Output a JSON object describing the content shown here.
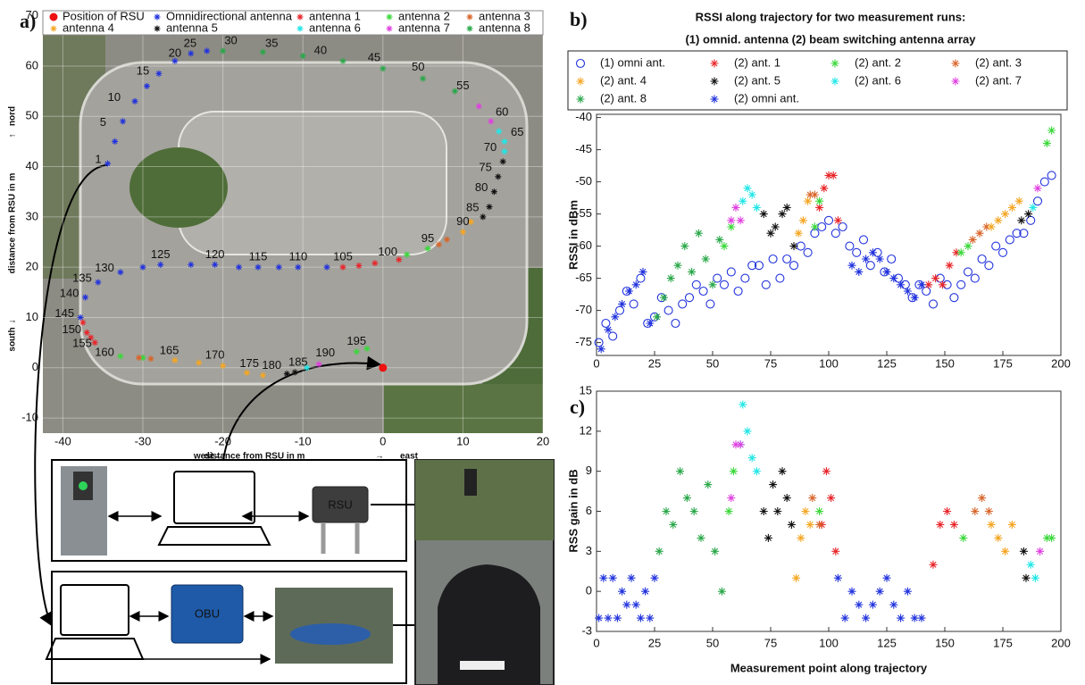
{
  "chart_data": [
    {
      "type": "scatter",
      "panel_label": "a)",
      "xlabel": "distance from RSU in m",
      "x_low_label": "west",
      "x_low_arrow": "←",
      "x_high_arrow": "→",
      "x_high_label": "east",
      "ylabel": "distance from RSU in m",
      "y_low_label": "south",
      "y_low_arrow": "↓",
      "y_high_arrow": "↑",
      "y_high_label": "nord",
      "xlim": [
        -42.5,
        20
      ],
      "ylim": [
        -13,
        71
      ],
      "xticks": [
        -40,
        -30,
        -20,
        -10,
        0,
        10,
        20
      ],
      "yticks": [
        -10,
        0,
        10,
        20,
        30,
        40,
        50,
        60,
        70
      ],
      "grid": true,
      "legend_columns": 5,
      "series": [
        {
          "name": "Position of RSU",
          "color": "#ee1111",
          "marker": "dot",
          "x": [
            0
          ],
          "y": [
            0
          ]
        },
        {
          "name": "Omnidirectional antenna",
          "color": "#2233dd",
          "marker": "*",
          "x": [
            -34.4,
            -33.5,
            -32.5,
            -31,
            -29.5,
            -28,
            -26,
            -24,
            -22,
            -7,
            -10.6,
            -13,
            -15.6,
            -18,
            -21,
            -24,
            -27.8,
            -30,
            -32.8,
            -35.6,
            -37.2,
            -37.8
          ],
          "y": [
            40.6,
            45,
            49,
            53,
            56,
            58.5,
            61,
            62.5,
            63,
            20,
            20,
            20,
            20,
            20,
            20.5,
            20.5,
            20.5,
            20,
            19,
            17,
            14,
            10
          ]
        },
        {
          "name": "antenna 1",
          "color": "#e8262b",
          "marker": "*",
          "x": [
            2,
            -1,
            -3,
            -5,
            -37.5,
            -37,
            -36.5,
            -36
          ],
          "y": [
            21.5,
            20.8,
            20.3,
            20,
            9,
            7,
            6,
            5
          ]
        },
        {
          "name": "antenna 2",
          "color": "#3ad83a",
          "marker": "*",
          "x": [
            5.6,
            3,
            -32.8,
            -30,
            -3.3,
            -2
          ],
          "y": [
            23.7,
            22.5,
            2.3,
            2.0,
            3.2,
            3.8
          ]
        },
        {
          "name": "antenna 3",
          "color": "#d9652a",
          "marker": "*",
          "x": [
            8,
            7,
            -30.5,
            -29
          ],
          "y": [
            25.5,
            24.5,
            2,
            1.8
          ]
        },
        {
          "name": "antenna 4",
          "color": "#f5a623",
          "marker": "*",
          "x": [
            11,
            10,
            -26,
            -23,
            -20,
            -17,
            -15
          ],
          "y": [
            29,
            27,
            1.5,
            1,
            0.4,
            -1,
            -1.5
          ]
        },
        {
          "name": "antenna 5",
          "color": "#111111",
          "marker": "*",
          "x": [
            15,
            14.4,
            13.9,
            13.3,
            12.5,
            -12,
            -11
          ],
          "y": [
            41,
            38,
            35,
            32,
            30,
            -1.2,
            -0.9
          ]
        },
        {
          "name": "antenna 6",
          "color": "#22e6e6",
          "marker": "*",
          "x": [
            14.5,
            15.2,
            15.2,
            -9.5
          ],
          "y": [
            47,
            45,
            43,
            0
          ]
        },
        {
          "name": "antenna 7",
          "color": "#e040e0",
          "marker": "*",
          "x": [
            12,
            13.5,
            -8
          ],
          "y": [
            52,
            49,
            0.7
          ]
        },
        {
          "name": "antenna 8",
          "color": "#2aa84a",
          "marker": "*",
          "x": [
            -20,
            -15,
            -10,
            -5,
            0,
            5,
            9
          ],
          "y": [
            63,
            62.8,
            62,
            61,
            59.5,
            57.5,
            55
          ]
        }
      ],
      "annotations": [
        {
          "text": "1",
          "x": -34.4,
          "y": 40.6
        },
        {
          "text": "5",
          "x": -33.8,
          "y": 48
        },
        {
          "text": "10",
          "x": -32,
          "y": 53
        },
        {
          "text": "15",
          "x": -30,
          "y": 57
        },
        {
          "text": "20",
          "x": -26,
          "y": 60.5
        },
        {
          "text": "25",
          "x": -24.1,
          "y": 62.5
        },
        {
          "text": "30",
          "x": -19,
          "y": 63
        },
        {
          "text": "35",
          "x": -13.9,
          "y": 62.5
        },
        {
          "text": "40",
          "x": -7.8,
          "y": 61
        },
        {
          "text": "45",
          "x": -1.1,
          "y": 59.6
        },
        {
          "text": "50",
          "x": 4.4,
          "y": 57.8
        },
        {
          "text": "55",
          "x": 10,
          "y": 54
        },
        {
          "text": "60",
          "x": 13.3,
          "y": 50
        },
        {
          "text": "65",
          "x": 15.2,
          "y": 46
        },
        {
          "text": "70",
          "x": 15,
          "y": 43
        },
        {
          "text": "75",
          "x": 14.4,
          "y": 39
        },
        {
          "text": "80",
          "x": 13.9,
          "y": 35
        },
        {
          "text": "85",
          "x": 12.8,
          "y": 31
        },
        {
          "text": "90",
          "x": 10,
          "y": 27
        },
        {
          "text": "95",
          "x": 5.6,
          "y": 23.7
        },
        {
          "text": "100",
          "x": 0.6,
          "y": 21
        },
        {
          "text": "105",
          "x": -5,
          "y": 20
        },
        {
          "text": "110",
          "x": -10.6,
          "y": 20
        },
        {
          "text": "115",
          "x": -15.6,
          "y": 20
        },
        {
          "text": "120",
          "x": -21,
          "y": 20.5
        },
        {
          "text": "125",
          "x": -27.8,
          "y": 20.5
        },
        {
          "text": "130",
          "x": -32.8,
          "y": 19
        },
        {
          "text": "135",
          "x": -35.6,
          "y": 17
        },
        {
          "text": "140",
          "x": -37.2,
          "y": 14
        },
        {
          "text": "145",
          "x": -37.8,
          "y": 10
        },
        {
          "text": "150",
          "x": -36.9,
          "y": 6.8
        },
        {
          "text": "155",
          "x": -35.6,
          "y": 4
        },
        {
          "text": "160",
          "x": -32.8,
          "y": 2.3
        },
        {
          "text": "165",
          "x": -26.7,
          "y": 1.4
        },
        {
          "text": "170",
          "x": -21,
          "y": 0.5
        },
        {
          "text": "175",
          "x": -16.7,
          "y": -1.2
        },
        {
          "text": "180",
          "x": -13.9,
          "y": -1.6
        },
        {
          "text": "185",
          "x": -10.6,
          "y": -0.9
        },
        {
          "text": "190",
          "x": -7.2,
          "y": 0.9
        },
        {
          "text": "195",
          "x": -3.3,
          "y": 3.2
        }
      ]
    },
    {
      "type": "scatter",
      "panel_label": "b)",
      "title": [
        "RSSI along trajectory for two measurement runs:",
        "(1) omnid. antenna (2) beam switching antenna array"
      ],
      "ylabel": "RSSI in dBm",
      "xlim": [
        0,
        200
      ],
      "ylim": [
        -77,
        -39.5
      ],
      "xticks": [
        0,
        25,
        50,
        75,
        100,
        125,
        150,
        175,
        200
      ],
      "yticks": [
        -75,
        -70,
        -65,
        -60,
        -55,
        -50,
        -45,
        -40
      ],
      "grid": false,
      "legend_columns": 4,
      "series": [
        {
          "name": "(1) omni ant.",
          "color": "#2233dd",
          "marker": "o",
          "x": [
            1,
            4,
            7,
            10,
            13,
            16,
            19,
            22,
            25,
            28,
            31,
            34,
            37,
            40,
            43,
            46,
            49,
            52,
            55,
            58,
            61,
            64,
            67,
            70,
            73,
            76,
            79,
            82,
            85,
            88,
            91,
            94,
            97,
            100,
            103,
            106,
            109,
            112,
            115,
            118,
            121,
            124,
            127,
            130,
            133,
            136,
            139,
            142,
            145,
            148,
            151,
            154,
            157,
            160,
            163,
            166,
            169,
            172,
            175,
            178,
            181,
            184,
            187,
            190,
            193,
            196
          ],
          "y": [
            -75,
            -72,
            -74,
            -70,
            -67,
            -69,
            -65,
            -72,
            -71,
            -68,
            -70,
            -72,
            -69,
            -68,
            -66,
            -67,
            -69,
            -65,
            -66,
            -64,
            -67,
            -65,
            -63,
            -63,
            -66,
            -62,
            -65,
            -62,
            -63,
            -60,
            -61,
            -58,
            -57,
            -56,
            -58,
            -57,
            -60,
            -61,
            -59,
            -63,
            -61,
            -64,
            -62,
            -65,
            -66,
            -68,
            -66,
            -67,
            -69,
            -65,
            -66,
            -68,
            -66,
            -64,
            -65,
            -62,
            -63,
            -60,
            -61,
            -59,
            -58,
            -58,
            -56,
            -53,
            -50,
            -49
          ]
        },
        {
          "name": "(2) ant. 1",
          "color": "#e8262b",
          "marker": "*",
          "x": [
            96,
            98,
            100,
            102,
            104,
            143,
            146,
            149,
            152,
            155
          ],
          "y": [
            -54,
            -51,
            -49,
            -49,
            -56,
            -66,
            -65,
            -66,
            -63,
            -61
          ]
        },
        {
          "name": "(2) ant. 2",
          "color": "#3ad83a",
          "marker": "*",
          "x": [
            55,
            58,
            94,
            96,
            157,
            160,
            194,
            196
          ],
          "y": [
            -60,
            -57,
            -57,
            -53,
            -61,
            -60,
            -44,
            -42
          ]
        },
        {
          "name": "(2) ant. 3",
          "color": "#d9652a",
          "marker": "*",
          "x": [
            92,
            94,
            162,
            165,
            168
          ],
          "y": [
            -52,
            -52,
            -59,
            -58,
            -57
          ]
        },
        {
          "name": "(2) ant. 4",
          "color": "#f5a623",
          "marker": "*",
          "x": [
            87,
            89,
            91,
            170,
            173,
            176,
            179,
            182
          ],
          "y": [
            -58,
            -56,
            -53,
            -57,
            -56,
            -55,
            -54,
            -53
          ]
        },
        {
          "name": "(2) ant. 5",
          "color": "#111111",
          "marker": "*",
          "x": [
            72,
            75,
            77,
            80,
            82,
            85,
            183,
            186
          ],
          "y": [
            -55,
            -58,
            -57,
            -55,
            -54,
            -60,
            -56,
            -55
          ]
        },
        {
          "name": "(2) ant. 6",
          "color": "#22e6e6",
          "marker": "*",
          "x": [
            63,
            65,
            67,
            69,
            188
          ],
          "y": [
            -53,
            -51,
            -52,
            -54,
            -54
          ]
        },
        {
          "name": "(2) ant. 7",
          "color": "#e040e0",
          "marker": "*",
          "x": [
            58,
            60,
            62,
            190
          ],
          "y": [
            -56,
            -54,
            -56,
            -51
          ]
        },
        {
          "name": "(2) ant. 8",
          "color": "#2aa84a",
          "marker": "*",
          "x": [
            26,
            29,
            32,
            35,
            38,
            41,
            44,
            47,
            50,
            53
          ],
          "y": [
            -71,
            -68,
            -65,
            -63,
            -60,
            -64,
            -58,
            -62,
            -66,
            -59
          ]
        },
        {
          "name": "(2) omni ant.",
          "color": "#2233dd",
          "marker": "*",
          "x": [
            2,
            5,
            8,
            11,
            14,
            17,
            20,
            23,
            110,
            113,
            116,
            119,
            122,
            125,
            128,
            131,
            134,
            137,
            140
          ],
          "y": [
            -76,
            -73,
            -71,
            -69,
            -67,
            -66,
            -64,
            -72,
            -63,
            -64,
            -62,
            -61,
            -62,
            -64,
            -65,
            -66,
            -67,
            -68,
            -66
          ]
        }
      ]
    },
    {
      "type": "scatter",
      "panel_label": "c)",
      "xlabel": "Measurement point along trajectory",
      "ylabel": "RSS gain in dB",
      "xlim": [
        0,
        200
      ],
      "ylim": [
        -3,
        15
      ],
      "xticks": [
        0,
        25,
        50,
        75,
        100,
        125,
        150,
        175,
        200
      ],
      "yticks": [
        -3,
        0,
        3,
        6,
        9,
        12,
        15
      ],
      "grid": false,
      "series": [
        {
          "color": "#e8262b",
          "marker": "*",
          "x": [
            97,
            99,
            101,
            103,
            145,
            148,
            151,
            154
          ],
          "y": [
            5,
            9,
            7,
            3,
            2,
            5,
            6,
            5
          ]
        },
        {
          "color": "#3ad83a",
          "marker": "*",
          "x": [
            57,
            59,
            96,
            158,
            194,
            196
          ],
          "y": [
            6,
            9,
            6,
            4,
            4,
            4
          ]
        },
        {
          "color": "#d9652a",
          "marker": "*",
          "x": [
            93,
            96,
            163,
            166,
            169
          ],
          "y": [
            7,
            5,
            6,
            7,
            6
          ]
        },
        {
          "color": "#f5a623",
          "marker": "*",
          "x": [
            86,
            88,
            90,
            92,
            170,
            173,
            176,
            179
          ],
          "y": [
            1,
            4,
            6,
            5,
            5,
            4,
            3,
            5
          ]
        },
        {
          "color": "#111111",
          "marker": "*",
          "x": [
            72,
            74,
            76,
            78,
            80,
            82,
            84,
            184,
            185
          ],
          "y": [
            6,
            4,
            8,
            6,
            9,
            7,
            5,
            3,
            1
          ]
        },
        {
          "color": "#22e6e6",
          "marker": "*",
          "x": [
            62,
            63,
            65,
            67,
            69,
            187,
            189
          ],
          "y": [
            11,
            14,
            12,
            10,
            9,
            2,
            1
          ]
        },
        {
          "color": "#e040e0",
          "marker": "*",
          "x": [
            58,
            60,
            62,
            191
          ],
          "y": [
            7,
            11,
            11,
            3
          ]
        },
        {
          "color": "#2aa84a",
          "marker": "*",
          "x": [
            27,
            30,
            33,
            36,
            39,
            42,
            45,
            48,
            51,
            54
          ],
          "y": [
            3,
            6,
            5,
            9,
            7,
            6,
            4,
            8,
            3,
            0
          ]
        },
        {
          "color": "#2233dd",
          "marker": "*",
          "x": [
            1,
            3,
            5,
            7,
            9,
            11,
            13,
            15,
            17,
            19,
            21,
            23,
            25,
            104,
            107,
            110,
            113,
            116,
            119,
            122,
            125,
            128,
            131,
            134,
            137,
            140
          ],
          "y": [
            -2,
            1,
            -2,
            1,
            -2,
            0,
            -1,
            1,
            -1,
            -2,
            0,
            -2,
            1,
            1,
            -2,
            0,
            -1,
            -2,
            -1,
            0,
            1,
            -1,
            -2,
            0,
            -2,
            -2
          ]
        }
      ]
    }
  ],
  "diagram": {
    "rsu_label": "RSU",
    "obu_label": "OBU"
  }
}
